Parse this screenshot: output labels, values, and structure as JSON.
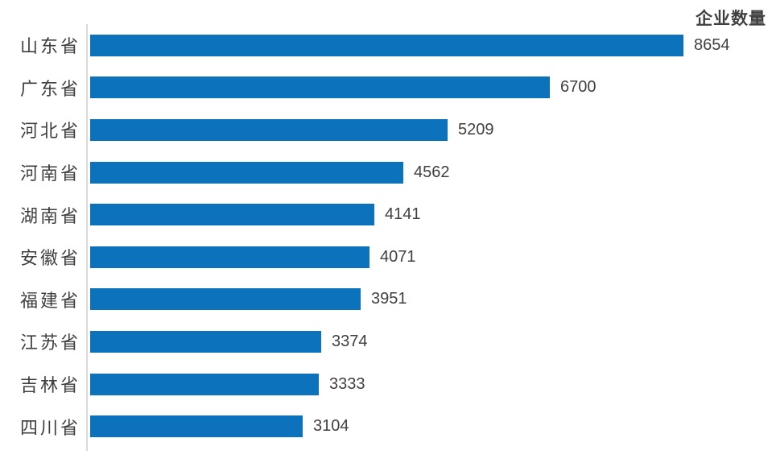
{
  "chart_data": {
    "type": "bar",
    "orientation": "horizontal",
    "title": "企业数量",
    "categories": [
      "山东省",
      "广东省",
      "河北省",
      "河南省",
      "湖南省",
      "安徽省",
      "福建省",
      "江苏省",
      "吉林省",
      "四川省"
    ],
    "values": [
      8654,
      6700,
      5209,
      4562,
      4141,
      4071,
      3951,
      3374,
      3333,
      3104
    ],
    "xlim": [
      0,
      9000
    ],
    "value_labels": "outside-end",
    "grid": false,
    "legend_position": "top-right",
    "bar_color": "#0c72bc",
    "axis_line_color": "#d9d9d9",
    "text_color": "#404040"
  }
}
